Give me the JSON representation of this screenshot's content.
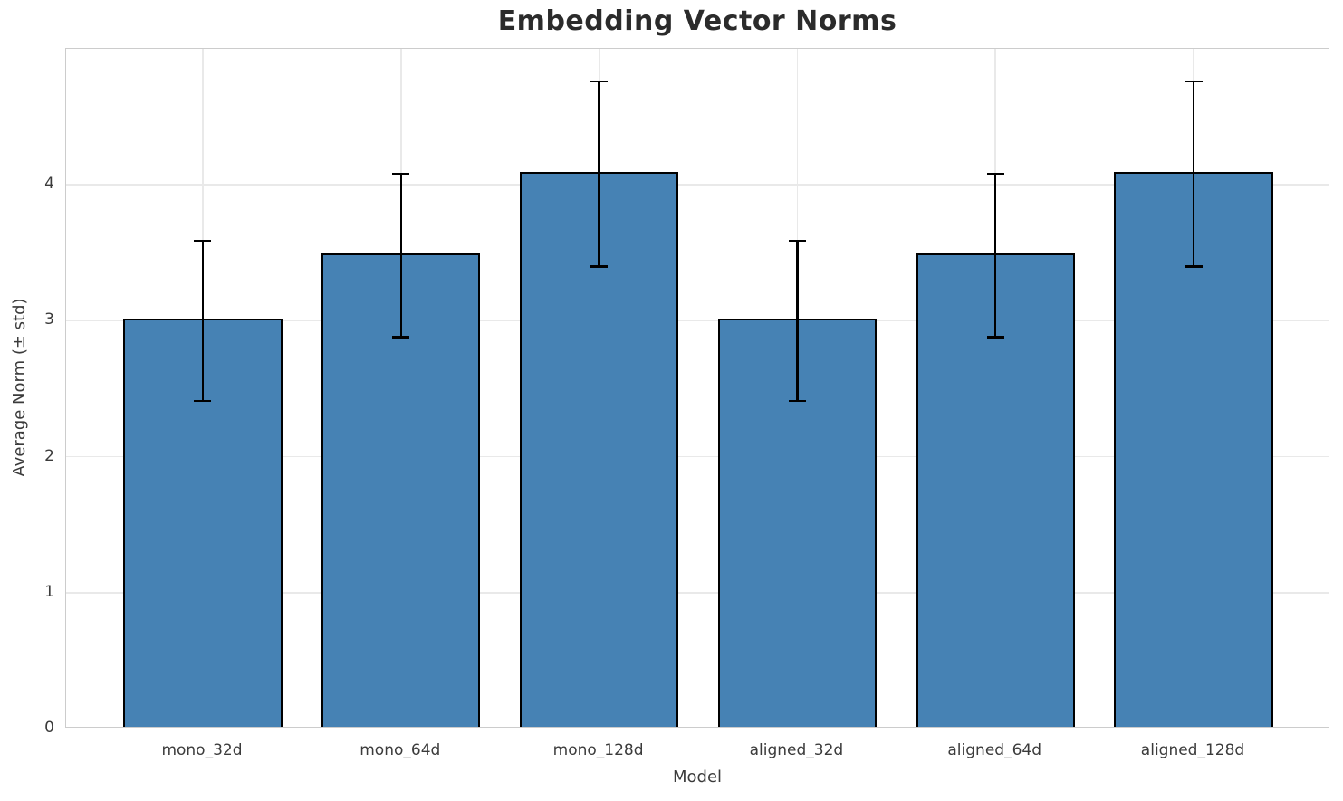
{
  "chart_data": {
    "type": "bar",
    "title": "Embedding Vector Norms",
    "xlabel": "Model",
    "ylabel": "Average Norm (± std)",
    "categories": [
      "mono_32d",
      "mono_64d",
      "mono_128d",
      "aligned_32d",
      "aligned_64d",
      "aligned_128d"
    ],
    "values": [
      3.0,
      3.48,
      4.08,
      3.0,
      3.48,
      4.08
    ],
    "errors": [
      0.59,
      0.6,
      0.68,
      0.59,
      0.6,
      0.68
    ],
    "ylim": [
      0,
      5
    ],
    "yticks": [
      "0",
      "1",
      "2",
      "3",
      "4"
    ],
    "xlim": [
      -0.69,
      5.69
    ],
    "bar_width": 0.8,
    "grid": true,
    "legend": "none",
    "bar_color": "#4682b4",
    "bar_edge_color": "#000000",
    "error_color": "#000000",
    "grid_color": "#e9e9e9",
    "spine_color": "#cccccc",
    "tick_label_color": "#3b3b3b",
    "title_color": "#2b2b2b"
  }
}
